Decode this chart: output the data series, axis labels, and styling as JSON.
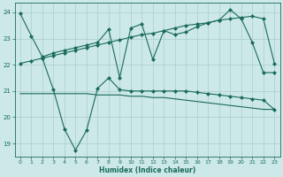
{
  "xlabel": "Humidex (Indice chaleur)",
  "xlim": [
    -0.5,
    23.5
  ],
  "ylim": [
    18.5,
    24.35
  ],
  "yticks": [
    19,
    20,
    21,
    22,
    23,
    24
  ],
  "xticks": [
    0,
    1,
    2,
    3,
    4,
    5,
    6,
    7,
    8,
    9,
    10,
    11,
    12,
    13,
    14,
    15,
    16,
    17,
    18,
    19,
    20,
    21,
    22,
    23
  ],
  "bg_color": "#cce8e8",
  "grid_color": "#aacece",
  "line_color": "#1a6b5a",
  "line1_x": [
    0,
    1,
    2,
    3,
    4,
    5,
    6,
    7,
    8,
    9,
    10,
    11,
    12,
    13,
    14,
    15,
    16,
    17,
    18,
    19,
    20,
    21,
    22,
    23
  ],
  "line1_y": [
    23.95,
    23.1,
    22.3,
    22.45,
    22.55,
    22.65,
    22.75,
    22.85,
    23.35,
    21.5,
    23.4,
    23.55,
    22.2,
    23.3,
    23.15,
    23.25,
    23.45,
    23.6,
    23.7,
    24.1,
    23.75,
    22.85,
    21.7,
    21.7
  ],
  "line2_x": [
    0,
    1,
    2,
    3,
    4,
    5,
    6,
    7,
    8,
    9,
    10,
    11,
    12,
    13,
    14,
    15,
    16,
    17,
    18,
    19,
    20,
    21,
    22,
    23
  ],
  "line2_y": [
    22.05,
    22.15,
    22.25,
    22.35,
    22.45,
    22.55,
    22.65,
    22.75,
    22.85,
    22.95,
    23.05,
    23.15,
    23.2,
    23.3,
    23.4,
    23.5,
    23.55,
    23.6,
    23.7,
    23.75,
    23.8,
    23.85,
    23.75,
    22.05
  ],
  "line3_x": [
    0,
    1,
    2,
    3,
    4,
    5,
    6,
    7,
    8,
    9,
    10,
    11,
    12,
    13,
    14,
    15,
    16,
    17,
    18,
    19,
    20,
    21,
    22,
    23
  ],
  "line3_y": [
    20.9,
    20.9,
    20.9,
    20.9,
    20.9,
    20.9,
    20.9,
    20.85,
    20.85,
    20.85,
    20.8,
    20.8,
    20.75,
    20.75,
    20.7,
    20.65,
    20.6,
    20.55,
    20.5,
    20.45,
    20.4,
    20.35,
    20.3,
    20.3
  ],
  "line4_x": [
    2,
    3,
    4,
    5,
    6,
    7,
    8,
    9,
    10,
    11,
    12,
    13,
    14,
    15,
    16,
    17,
    18,
    19,
    20,
    21,
    22,
    23
  ],
  "line4_y": [
    22.25,
    21.05,
    19.55,
    18.75,
    19.5,
    21.1,
    21.5,
    21.05,
    21.0,
    21.0,
    21.0,
    21.0,
    21.0,
    21.0,
    20.95,
    20.9,
    20.85,
    20.8,
    20.75,
    20.7,
    20.65,
    20.3
  ]
}
